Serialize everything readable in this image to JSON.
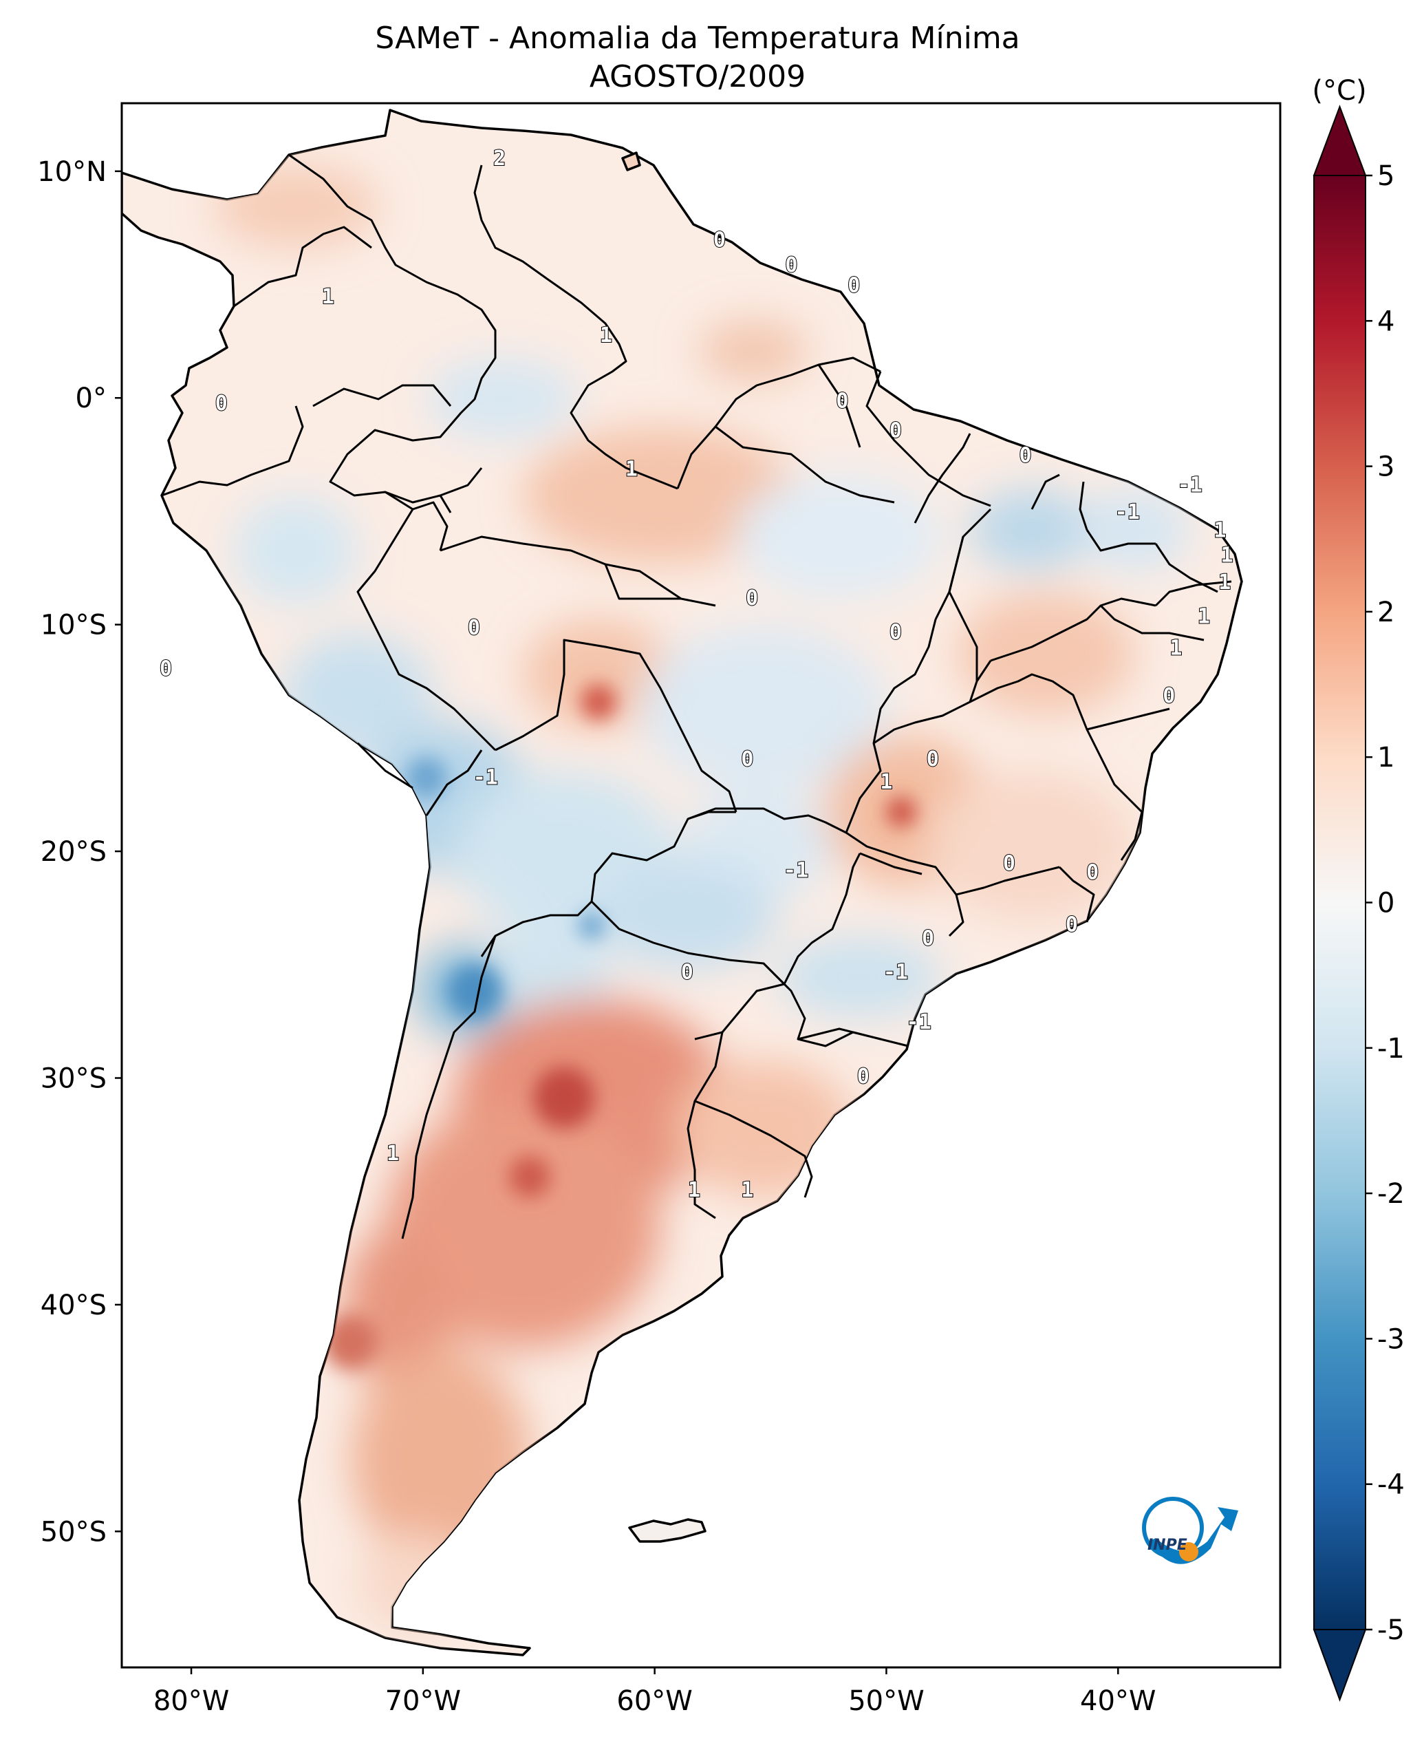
{
  "title": {
    "line1": "SAMeT - Anomalia da Temperatura Mínima",
    "line2": "AGOSTO/2009"
  },
  "colorbar": {
    "unit_label": "(°C)",
    "ticks": [
      "5",
      "4",
      "3",
      "2",
      "1",
      "0",
      "-1",
      "-2",
      "-3",
      "-4",
      "-5"
    ],
    "min": -5,
    "max": 5,
    "colormap": "RdBu_r",
    "colors": [
      "#053061",
      "#2166ac",
      "#4393c3",
      "#92c5de",
      "#d1e5f0",
      "#f7f7f7",
      "#fddbc7",
      "#f4a582",
      "#d6604d",
      "#b2182b",
      "#67001f"
    ]
  },
  "axes": {
    "lon_ticks": [
      "80°W",
      "70°W",
      "60°W",
      "50°W",
      "40°W"
    ],
    "lat_ticks": [
      "10°N",
      "0°",
      "10°S",
      "20°S",
      "30°S",
      "40°S",
      "50°S"
    ]
  },
  "contour_labels": [
    {
      "text": "2",
      "lon": -66.7,
      "lat": 10.6
    },
    {
      "text": "1",
      "lon": -74.1,
      "lat": 4.5
    },
    {
      "text": "0",
      "lon": -57.2,
      "lat": 7.0
    },
    {
      "text": "0",
      "lon": -54.1,
      "lat": 5.9
    },
    {
      "text": "0",
      "lon": -51.4,
      "lat": 5.0
    },
    {
      "text": "1",
      "lon": -62.1,
      "lat": 2.8
    },
    {
      "text": "0",
      "lon": -78.7,
      "lat": -0.2
    },
    {
      "text": "0",
      "lon": -51.9,
      "lat": -0.1
    },
    {
      "text": "0",
      "lon": -49.6,
      "lat": -1.4
    },
    {
      "text": "0",
      "lon": -44.0,
      "lat": -2.5
    },
    {
      "text": "-1",
      "lon": -36.9,
      "lat": -3.8
    },
    {
      "text": "-1",
      "lon": -39.6,
      "lat": -5.0
    },
    {
      "text": "1",
      "lon": -35.6,
      "lat": -5.8
    },
    {
      "text": "1",
      "lon": -35.3,
      "lat": -6.9
    },
    {
      "text": "1",
      "lon": -35.4,
      "lat": -8.1
    },
    {
      "text": "1",
      "lon": -61.0,
      "lat": -3.1
    },
    {
      "text": "0",
      "lon": -55.8,
      "lat": -8.8
    },
    {
      "text": "0",
      "lon": -67.8,
      "lat": -10.1
    },
    {
      "text": "0",
      "lon": -49.6,
      "lat": -10.3
    },
    {
      "text": "1",
      "lon": -36.3,
      "lat": -9.6
    },
    {
      "text": "1",
      "lon": -37.5,
      "lat": -11.0
    },
    {
      "text": "0",
      "lon": -81.1,
      "lat": -11.9
    },
    {
      "text": "0",
      "lon": -37.8,
      "lat": -13.1
    },
    {
      "text": "0",
      "lon": -56.0,
      "lat": -15.9
    },
    {
      "text": "0",
      "lon": -48.0,
      "lat": -15.9
    },
    {
      "text": "1",
      "lon": -50.0,
      "lat": -16.9
    },
    {
      "text": "-1",
      "lon": -67.3,
      "lat": -16.7
    },
    {
      "text": "-1",
      "lon": -53.9,
      "lat": -20.8
    },
    {
      "text": "0",
      "lon": -44.7,
      "lat": -20.5
    },
    {
      "text": "0",
      "lon": -41.1,
      "lat": -20.9
    },
    {
      "text": "0",
      "lon": -42.0,
      "lat": -23.2
    },
    {
      "text": "0",
      "lon": -48.2,
      "lat": -23.8
    },
    {
      "text": "0",
      "lon": -58.6,
      "lat": -25.3
    },
    {
      "text": "-1",
      "lon": -49.6,
      "lat": -25.3
    },
    {
      "text": "-1",
      "lon": -48.6,
      "lat": -27.5
    },
    {
      "text": "0",
      "lon": -51.0,
      "lat": -29.9
    },
    {
      "text": "1",
      "lon": -71.3,
      "lat": -33.3
    },
    {
      "text": "1",
      "lon": -58.3,
      "lat": -34.9
    },
    {
      "text": "1",
      "lon": -56.0,
      "lat": -34.9
    }
  ],
  "map": {
    "extent_lon": [
      -83,
      -33
    ],
    "extent_lat": [
      -56,
      13
    ],
    "logo_text": "INPE",
    "frame_color": "#000000",
    "land_color": "#fbeee6",
    "ocean_color": "#ffffff"
  }
}
